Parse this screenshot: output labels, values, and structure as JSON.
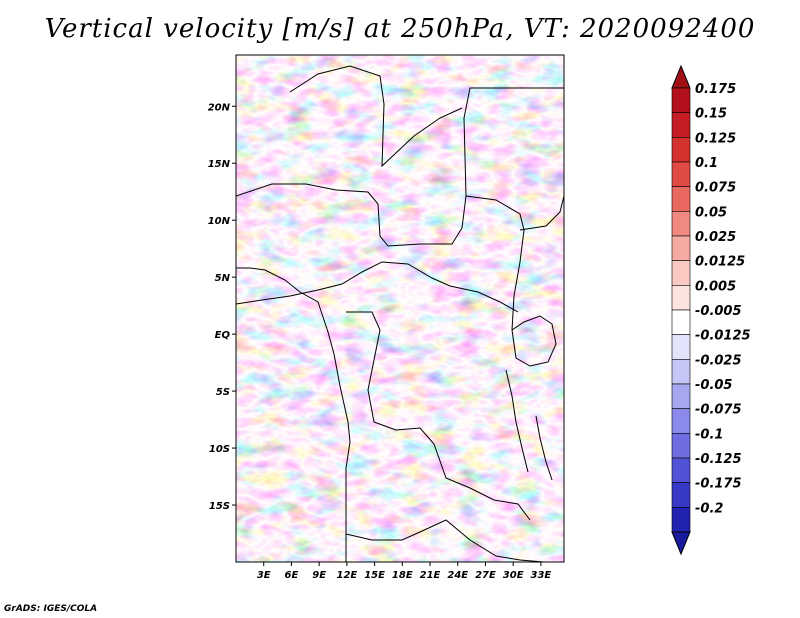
{
  "title": "Vertical velocity [m/s] at 250hPa, VT: 2020092400",
  "credit": "GrADS: IGES/COLA",
  "map": {
    "lon_range": [
      0,
      35.5
    ],
    "lat_range": [
      -20,
      24.5
    ],
    "lat_ticks": [
      {
        "value": 20,
        "label": "20N"
      },
      {
        "value": 15,
        "label": "15N"
      },
      {
        "value": 10,
        "label": "10N"
      },
      {
        "value": 5,
        "label": "5N"
      },
      {
        "value": 0,
        "label": "EQ"
      },
      {
        "value": -5,
        "label": "5S"
      },
      {
        "value": -10,
        "label": "10S"
      },
      {
        "value": -15,
        "label": "15S"
      }
    ],
    "lon_ticks": [
      {
        "value": 3,
        "label": "3E"
      },
      {
        "value": 6,
        "label": "6E"
      },
      {
        "value": 9,
        "label": "9E"
      },
      {
        "value": 12,
        "label": "12E"
      },
      {
        "value": 15,
        "label": "15E"
      },
      {
        "value": 18,
        "label": "18E"
      },
      {
        "value": 21,
        "label": "21E"
      },
      {
        "value": 24,
        "label": "24E"
      },
      {
        "value": 27,
        "label": "27E"
      },
      {
        "value": 30,
        "label": "30E"
      },
      {
        "value": 33,
        "label": "33E"
      }
    ]
  },
  "colorbar": {
    "levels": [
      {
        "label": "0.175",
        "color": "#b2101a"
      },
      {
        "label": "0.15",
        "color": "#c41e24"
      },
      {
        "label": "0.125",
        "color": "#d4322f"
      },
      {
        "label": "0.1",
        "color": "#e04a45"
      },
      {
        "label": "0.075",
        "color": "#e9685f"
      },
      {
        "label": "0.05",
        "color": "#f08a80"
      },
      {
        "label": "0.025",
        "color": "#f5aba2"
      },
      {
        "label": "0.0125",
        "color": "#f9c9c2"
      },
      {
        "label": "0.005",
        "color": "#fce3df"
      },
      {
        "label": "-0.005",
        "color": "#ffffff"
      },
      {
        "label": "-0.0125",
        "color": "#e3e3fb"
      },
      {
        "label": "-0.025",
        "color": "#c5c5f6"
      },
      {
        "label": "-0.05",
        "color": "#a7a7f0"
      },
      {
        "label": "-0.075",
        "color": "#8a8aea"
      },
      {
        "label": "-0.1",
        "color": "#6e6ee2"
      },
      {
        "label": "-0.125",
        "color": "#5252d6"
      },
      {
        "label": "-0.175",
        "color": "#3838c6"
      },
      {
        "label": "-0.2",
        "color": "#2222b0"
      }
    ],
    "top_color": "#a01017",
    "bottom_color": "#1a1aa0"
  }
}
